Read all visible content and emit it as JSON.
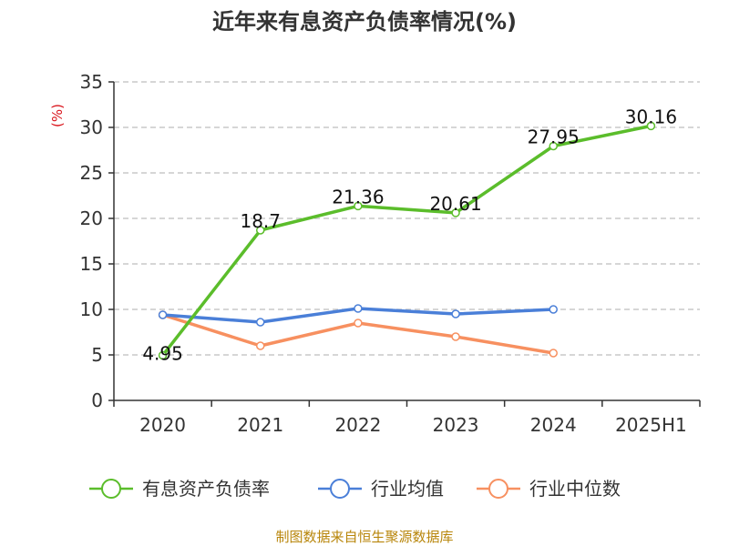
{
  "chart_data": {
    "type": "line",
    "title": "近年来有息资产负债率情况(%)",
    "ylabel": "(%)",
    "ylim": [
      0,
      35
    ],
    "yticks": [
      0,
      5,
      10,
      15,
      20,
      25,
      30,
      35
    ],
    "categories": [
      "2020",
      "2021",
      "2022",
      "2023",
      "2024",
      "2025H1"
    ],
    "grid": true,
    "legend_position": "bottom",
    "series": [
      {
        "name": "有息资产负债率",
        "color": "#5bbd2b",
        "values": [
          4.95,
          18.7,
          21.36,
          20.61,
          27.95,
          30.16
        ],
        "labels": [
          "4.95",
          "18.7",
          "21.36",
          "20.61",
          "27.95",
          "30.16"
        ]
      },
      {
        "name": "行业均值",
        "color": "#4a7fd8",
        "values": [
          9.4,
          8.6,
          10.1,
          9.5,
          10.0,
          null
        ]
      },
      {
        "name": "行业中位数",
        "color": "#f79060",
        "values": [
          9.4,
          6.0,
          8.5,
          7.0,
          5.2,
          null
        ]
      }
    ],
    "source": "制图数据来自恒生聚源数据库"
  }
}
